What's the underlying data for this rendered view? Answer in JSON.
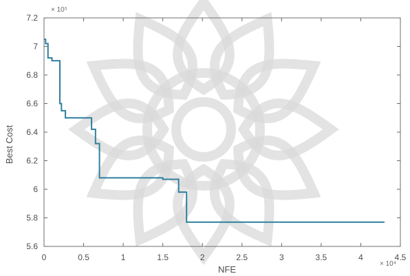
{
  "chart_data": {
    "type": "line",
    "title": "",
    "xlabel": "NFE",
    "ylabel": "Best Cost",
    "x_multiplier": "× 10⁴",
    "y_multiplier": "× 10⁵",
    "xlim": [
      0,
      4.5
    ],
    "ylim": [
      5.6,
      7.2
    ],
    "xticks": [
      0,
      0.5,
      1,
      1.5,
      2,
      2.5,
      3,
      3.5,
      4,
      4.5
    ],
    "xtick_labels": [
      "0",
      "0.5",
      "1",
      "1.5",
      "2",
      "2.5",
      "3",
      "3.5",
      "4",
      "4.5"
    ],
    "yticks": [
      5.6,
      5.8,
      6,
      6.2,
      6.4,
      6.6,
      6.8,
      7,
      7.2
    ],
    "ytick_labels": [
      "5.6",
      "5.8",
      "6",
      "6.2",
      "6.4",
      "6.6",
      "6.8",
      "7",
      "7.2"
    ],
    "grid": false,
    "series": [
      {
        "color": "#2f7f9f",
        "x": [
          0.0,
          0.02,
          0.02,
          0.05,
          0.05,
          0.1,
          0.1,
          0.2,
          0.2,
          0.22,
          0.22,
          0.27,
          0.27,
          0.6,
          0.6,
          0.65,
          0.65,
          0.7,
          0.7,
          1.5,
          1.5,
          1.7,
          1.7,
          1.8,
          1.8,
          4.3
        ],
        "y": [
          7.05,
          7.05,
          7.02,
          7.02,
          6.92,
          6.92,
          6.9,
          6.9,
          6.6,
          6.6,
          6.55,
          6.55,
          6.5,
          6.5,
          6.42,
          6.42,
          6.32,
          6.32,
          6.08,
          6.08,
          6.07,
          6.07,
          5.98,
          5.98,
          5.77,
          5.77
        ]
      }
    ]
  }
}
